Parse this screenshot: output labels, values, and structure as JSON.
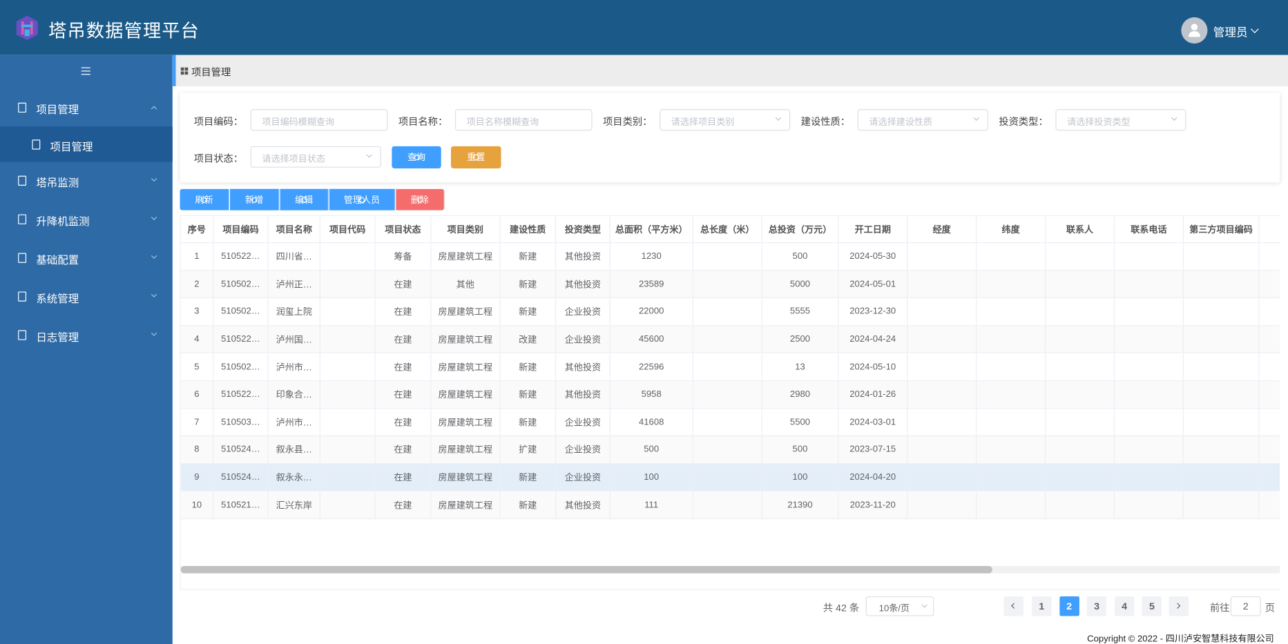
{
  "header": {
    "title": "塔吊数据管理平台",
    "user": "管理员"
  },
  "sidebar": {
    "menu": [
      {
        "label": "项目管理",
        "expanded": true,
        "children": [
          {
            "label": "项目管理",
            "active": true
          }
        ]
      },
      {
        "label": "塔吊监测"
      },
      {
        "label": "升降机监测"
      },
      {
        "label": "基础配置"
      },
      {
        "label": "系统管理"
      },
      {
        "label": "日志管理"
      }
    ]
  },
  "breadcrumb": "项目管理",
  "filters": [
    {
      "label": "项目编码：",
      "placeholder": "项目编码模糊查询",
      "kind": "input"
    },
    {
      "label": "项目名称：",
      "placeholder": "项目名称模糊查询",
      "kind": "input"
    },
    {
      "label": "项目类别：",
      "placeholder": "请选择项目类别",
      "kind": "select"
    },
    {
      "label": "建设性质：",
      "placeholder": "请选择建设性质",
      "kind": "select"
    },
    {
      "label": "投资类型：",
      "placeholder": "请选择投资类型",
      "kind": "select"
    },
    {
      "label": "项目状态：",
      "placeholder": "请选择项目状态",
      "kind": "select"
    }
  ],
  "filter_buttons": [
    {
      "label": "查询",
      "color": "#409eff"
    },
    {
      "label": "重置",
      "color": "#e6a23c"
    }
  ],
  "toolbar": [
    {
      "label": "刷新",
      "color": "#409eff"
    },
    {
      "label": "新增",
      "color": "#409eff"
    },
    {
      "label": "编辑",
      "color": "#409eff"
    },
    {
      "label": "管理人员",
      "color": "#409eff"
    },
    {
      "label": "删除",
      "color": "#f56c6c"
    }
  ],
  "table": {
    "columns": [
      "序号",
      "项目编码",
      "项目名称",
      "项目代码",
      "项目状态",
      "项目类别",
      "建设性质",
      "投资类型",
      "总面积（平方米）",
      "总长度（米）",
      "总投资（万元）",
      "开工日期",
      "经度",
      "纬度",
      "联系人",
      "联系电话",
      "第三方项目编码"
    ],
    "rows": [
      [
        1,
        "510522…",
        "四川省…",
        null,
        "筹备",
        "房屋建筑工程",
        "新建",
        "其他投资",
        1230,
        null,
        500,
        "2024-05-30"
      ],
      [
        2,
        "510502…",
        "泸州正…",
        null,
        "在建",
        "其他",
        "新建",
        "其他投资",
        23589,
        null,
        5000,
        "2024-05-01"
      ],
      [
        3,
        "510502…",
        "润玺上院",
        null,
        "在建",
        "房屋建筑工程",
        "新建",
        "企业投资",
        22000,
        null,
        5555,
        "2023-12-30"
      ],
      [
        4,
        "510522…",
        "泸州国…",
        null,
        "在建",
        "房屋建筑工程",
        "改建",
        "企业投资",
        45600,
        null,
        2500,
        "2024-04-24"
      ],
      [
        5,
        "510502…",
        "泸州市…",
        null,
        "在建",
        "房屋建筑工程",
        "新建",
        "其他投资",
        22596,
        null,
        13,
        "2024-05-10"
      ],
      [
        6,
        "510522…",
        "印象合…",
        null,
        "在建",
        "房屋建筑工程",
        "新建",
        "其他投资",
        5958,
        null,
        2980,
        "2024-01-26"
      ],
      [
        7,
        "510503…",
        "泸州市…",
        null,
        "在建",
        "房屋建筑工程",
        "新建",
        "企业投资",
        41608,
        null,
        5500,
        "2024-03-01"
      ],
      [
        8,
        "510524…",
        "叙永县…",
        null,
        "在建",
        "房屋建筑工程",
        "扩建",
        "企业投资",
        500,
        null,
        500,
        "2023-07-15"
      ],
      [
        9,
        "510524…",
        "叙永永…",
        null,
        "在建",
        "房屋建筑工程",
        "新建",
        "企业投资",
        100,
        null,
        100,
        "2024-04-20"
      ],
      [
        10,
        "510521…",
        "汇兴东岸",
        null,
        "在建",
        "房屋建筑工程",
        "新建",
        "其他投资",
        111,
        null,
        21390,
        "2023-11-20"
      ]
    ],
    "highlighted_row": 8
  },
  "pagination": {
    "total": "共 42 条",
    "page_size": "10条/页",
    "pages": [
      1,
      2,
      3,
      4,
      5
    ],
    "current": 2,
    "goto_label": "前往",
    "goto_value": 2,
    "goto_unit": "页"
  },
  "footer": "Copyright © 2022 - 四川泸安智慧科技有限公司"
}
